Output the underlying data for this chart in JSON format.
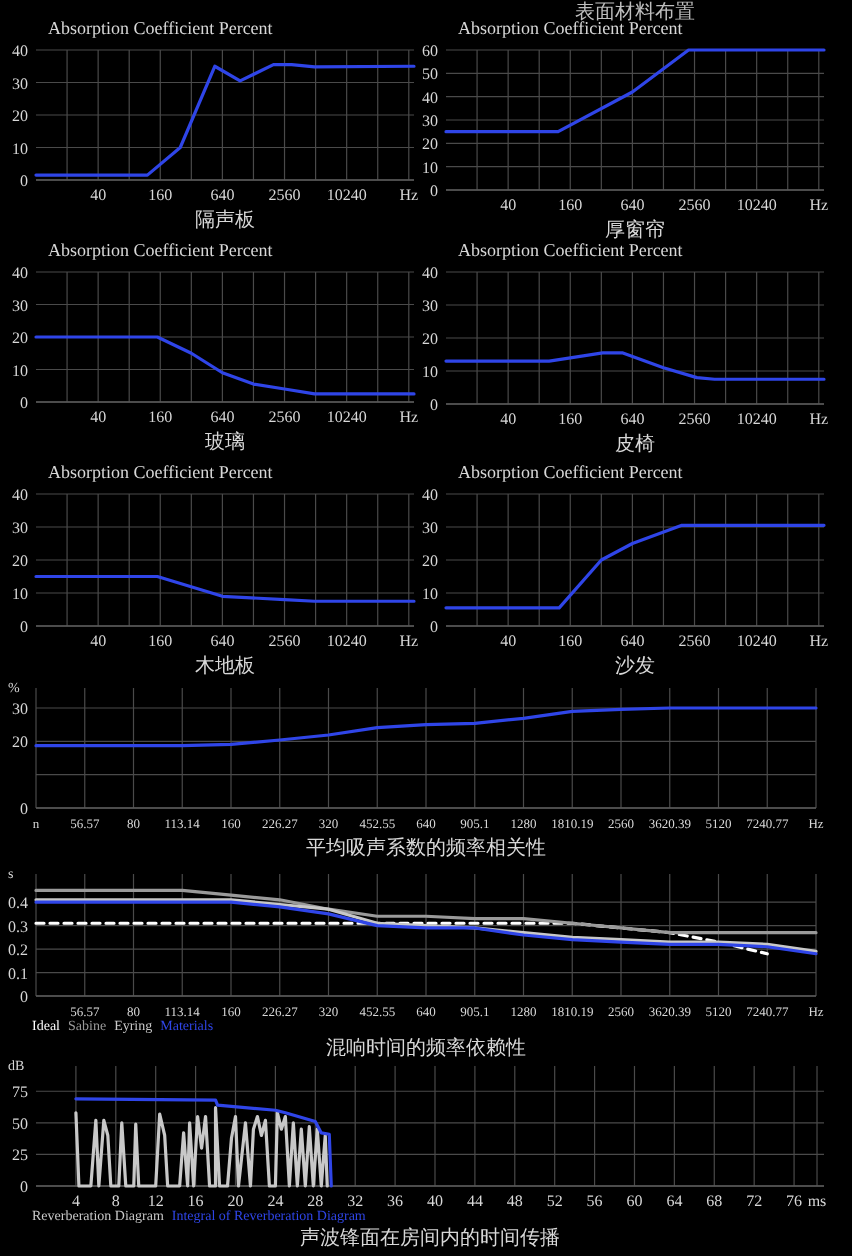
{
  "chart_data": [
    {
      "type": "line",
      "ylabel": "Absorption Coefficient Percent",
      "xlabel": "隔声板",
      "log": "x",
      "xlim": [
        10,
        46000
      ],
      "xticks": [
        {
          "value": 20,
          "label": null
        },
        40,
        {
          "value": 80,
          "label": null
        },
        160,
        {
          "value": 320,
          "label": null
        },
        640,
        {
          "value": 1280,
          "label": null
        },
        2560,
        {
          "value": 5120,
          "label": null
        },
        10240,
        {
          "value": 20480,
          "label": null
        },
        {
          "value": 40960,
          "label": "Hz"
        }
      ],
      "ylim": [
        0,
        40
      ],
      "yticks": [
        0,
        10,
        20,
        30,
        40
      ],
      "grid": true,
      "series": [
        {
          "color": "#2f45e8",
          "x": [
            10,
            120,
            250,
            540,
            950,
            2000,
            3000,
            5000,
            46000
          ],
          "values": [
            1.5,
            1.5,
            10,
            35,
            30.5,
            35.5,
            35.5,
            34.8,
            35
          ]
        }
      ]
    },
    {
      "type": "line",
      "title": "表面材料布置",
      "ylabel": "Absorption Coefficient Percent",
      "xlabel": "厚窗帘",
      "log": "x",
      "xlim": [
        10,
        46000
      ],
      "xticks": [
        {
          "value": 20,
          "label": null
        },
        40,
        {
          "value": 80,
          "label": null
        },
        160,
        {
          "value": 320,
          "label": null
        },
        640,
        {
          "value": 1280,
          "label": null
        },
        2560,
        {
          "value": 5120,
          "label": null
        },
        10240,
        {
          "value": 20480,
          "label": null
        },
        {
          "value": 40960,
          "label": "Hz"
        }
      ],
      "ylim": [
        0,
        60
      ],
      "yticks": [
        0,
        10,
        20,
        30,
        40,
        50,
        60
      ],
      "grid": true,
      "series": [
        {
          "color": "#2f45e8",
          "x": [
            10,
            122,
            640,
            2240,
            46000
          ],
          "values": [
            25,
            25,
            42,
            60,
            60
          ]
        }
      ]
    },
    {
      "type": "line",
      "ylabel": "Absorption Coefficient Percent",
      "xlabel": "玻璃",
      "log": "x",
      "xlim": [
        10,
        46000
      ],
      "xticks": [
        {
          "value": 20,
          "label": null
        },
        40,
        {
          "value": 80,
          "label": null
        },
        160,
        {
          "value": 320,
          "label": null
        },
        640,
        {
          "value": 1280,
          "label": null
        },
        2560,
        {
          "value": 5120,
          "label": null
        },
        10240,
        {
          "value": 20480,
          "label": null
        },
        {
          "value": 40960,
          "label": "Hz"
        }
      ],
      "ylim": [
        0,
        40
      ],
      "yticks": [
        0,
        10,
        20,
        30,
        40
      ],
      "grid": true,
      "series": [
        {
          "color": "#2f45e8",
          "x": [
            10,
            150,
            320,
            640,
            1280,
            2560,
            5000,
            46000
          ],
          "values": [
            20,
            20,
            15,
            9,
            5.5,
            4,
            2.5,
            2.5
          ]
        }
      ]
    },
    {
      "type": "line",
      "ylabel": "Absorption Coefficient Percent",
      "xlabel": "皮椅",
      "log": "x",
      "xlim": [
        10,
        46000
      ],
      "xticks": [
        {
          "value": 20,
          "label": null
        },
        40,
        {
          "value": 80,
          "label": null
        },
        160,
        {
          "value": 320,
          "label": null
        },
        640,
        {
          "value": 1280,
          "label": null
        },
        2560,
        {
          "value": 5120,
          "label": null
        },
        10240,
        {
          "value": 20480,
          "label": null
        },
        {
          "value": 40960,
          "label": "Hz"
        }
      ],
      "ylim": [
        0,
        40
      ],
      "yticks": [
        0,
        10,
        20,
        30,
        40
      ],
      "grid": true,
      "series": [
        {
          "color": "#2f45e8",
          "x": [
            10,
            100,
            330,
            510,
            1280,
            2700,
            4000,
            46000
          ],
          "values": [
            13,
            13,
            15.5,
            15.5,
            11,
            8,
            7.5,
            7.5
          ]
        }
      ]
    },
    {
      "type": "line",
      "ylabel": "Absorption Coefficient Percent",
      "xlabel": "木地板",
      "log": "x",
      "xlim": [
        10,
        46000
      ],
      "xticks": [
        {
          "value": 20,
          "label": null
        },
        40,
        {
          "value": 80,
          "label": null
        },
        160,
        {
          "value": 320,
          "label": null
        },
        640,
        {
          "value": 1280,
          "label": null
        },
        2560,
        {
          "value": 5120,
          "label": null
        },
        10240,
        {
          "value": 20480,
          "label": null
        },
        {
          "value": 40960,
          "label": "Hz"
        }
      ],
      "ylim": [
        0,
        40
      ],
      "yticks": [
        0,
        10,
        20,
        30,
        40
      ],
      "grid": true,
      "series": [
        {
          "color": "#2f45e8",
          "x": [
            10,
            150,
            640,
            2560,
            5000,
            46000
          ],
          "values": [
            15,
            15,
            9,
            8,
            7.5,
            7.5
          ]
        }
      ]
    },
    {
      "type": "line",
      "ylabel": "Absorption Coefficient Percent",
      "xlabel": "沙发",
      "log": "x",
      "xlim": [
        10,
        46000
      ],
      "xticks": [
        {
          "value": 20,
          "label": null
        },
        40,
        {
          "value": 80,
          "label": null
        },
        160,
        {
          "value": 320,
          "label": null
        },
        640,
        {
          "value": 1280,
          "label": null
        },
        2560,
        {
          "value": 5120,
          "label": null
        },
        10240,
        {
          "value": 20480,
          "label": null
        },
        {
          "value": 40960,
          "label": "Hz"
        }
      ],
      "ylim": [
        0,
        40
      ],
      "yticks": [
        0,
        10,
        20,
        30,
        40
      ],
      "grid": true,
      "series": [
        {
          "color": "#2f45e8",
          "x": [
            10,
            125,
            320,
            640,
            1930,
            46000
          ],
          "values": [
            5.5,
            5.5,
            20,
            25,
            30.5,
            30.5
          ]
        }
      ]
    },
    {
      "type": "line",
      "ylabel": "%",
      "xlabel": "平均吸声系数的频率相关性",
      "categories": [
        "n",
        "56.57",
        "80",
        "113.14",
        "160",
        "226.27",
        "320",
        "452.55",
        "640",
        "905.1",
        "1280",
        "1810.19",
        "2560",
        "3620.39",
        "5120",
        "7240.77",
        "Hz"
      ],
      "ylim": [
        0,
        36
      ],
      "yticks": [
        0,
        {
          "value": 10,
          "label": null
        },
        20,
        30
      ],
      "grid": true,
      "series": [
        {
          "color": "#2f45e8",
          "values": [
            18.7,
            18.7,
            18.7,
            18.7,
            19.1,
            20.4,
            21.9,
            24.1,
            25,
            25.4,
            26.9,
            29,
            29.6,
            30,
            30,
            30,
            30
          ]
        }
      ]
    },
    {
      "type": "line",
      "ylabel": "s",
      "xlabel": "混响时间的频率依赖性",
      "categories": [
        null,
        "56.57",
        "80",
        "113.14",
        "160",
        "226.27",
        "320",
        "452.55",
        "640",
        "905.1",
        "1280",
        "1810.19",
        "2560",
        "3620.39",
        "5120",
        "7240.77",
        "Hz"
      ],
      "ylim": [
        0,
        0.52
      ],
      "yticks": [
        0,
        0.1,
        0.2,
        0.3,
        0.4
      ],
      "grid": true,
      "legend": "bottom left",
      "series": [
        {
          "name": "Ideal",
          "color": "#ffffff",
          "line_style": "dashed",
          "values": [
            0.31,
            0.31,
            0.31,
            0.31,
            0.31,
            0.31,
            0.31,
            0.31,
            0.31,
            0.31,
            0.31,
            0.31,
            0.29,
            0.27,
            0.23,
            0.18,
            null
          ]
        },
        {
          "name": "Sabine",
          "color": "#9a9a9a",
          "values": [
            0.45,
            0.45,
            0.45,
            0.45,
            0.43,
            0.41,
            0.37,
            0.34,
            0.34,
            0.33,
            0.33,
            0.31,
            0.29,
            0.27,
            0.27,
            0.27,
            0.27
          ]
        },
        {
          "name": "Eyring",
          "color": "#c8c8c8",
          "values": [
            0.41,
            0.41,
            0.41,
            0.41,
            0.41,
            0.39,
            0.37,
            0.31,
            0.3,
            0.29,
            0.27,
            0.25,
            0.24,
            0.23,
            0.23,
            0.22,
            0.19
          ]
        },
        {
          "name": "Materials",
          "color": "#2f45e8",
          "values": [
            0.4,
            0.4,
            0.4,
            0.4,
            0.4,
            0.38,
            0.35,
            0.3,
            0.29,
            0.29,
            0.26,
            0.24,
            0.23,
            0.22,
            0.22,
            0.21,
            0.18
          ]
        }
      ]
    },
    {
      "type": "line",
      "ylabel": "dB",
      "xlabel": "声波锋面在房间内的时间传播",
      "xlim": [
        0,
        79
      ],
      "xticks": [
        4,
        8,
        12,
        16,
        20,
        24,
        28,
        32,
        36,
        40,
        44,
        48,
        52,
        56,
        60,
        64,
        68,
        72,
        76,
        {
          "value": 78.3,
          "label": "ms"
        }
      ],
      "ylim": [
        0,
        95
      ],
      "yticks": [
        0,
        25,
        50,
        75
      ],
      "grid": true,
      "legend": "bottom left",
      "series": [
        {
          "name": "Reverberation Diagram",
          "color": "#c8c8c8",
          "x": [
            4,
            4.3,
            5.5,
            6,
            6.3,
            6.8,
            7.2,
            7.5,
            8.3,
            8.6,
            9,
            9.8,
            10,
            10.3,
            12,
            12.4,
            12.9,
            13.2,
            14.4,
            14.8,
            15.2,
            15.4,
            15.8,
            16.2,
            16.6,
            17,
            17.4,
            18,
            18,
            18.4,
            19.2,
            19.6,
            20,
            20.3,
            21,
            21.5,
            21.8,
            22.2,
            22.6,
            23,
            23.4,
            24,
            24.2,
            24.6,
            25,
            25.4,
            25.8,
            26.2,
            26.6,
            27,
            27.4,
            27.8,
            28.2,
            28.6,
            29,
            29.2
          ],
          "values": [
            58,
            0,
            0,
            52,
            0,
            52,
            40,
            0,
            0,
            50,
            0,
            0,
            49,
            0,
            0,
            57,
            40,
            0,
            0,
            42,
            0,
            50,
            0,
            55,
            30,
            55,
            0,
            0,
            62,
            0,
            0,
            38,
            55,
            0,
            50,
            0,
            45,
            55,
            40,
            52,
            0,
            0,
            58,
            45,
            55,
            0,
            50,
            0,
            45,
            0,
            47,
            0,
            45,
            0,
            40,
            0
          ]
        },
        {
          "name": "Integral of Reverberation Diagram",
          "color": "#2f45e8",
          "x": [
            4,
            18,
            18.2,
            24,
            25,
            28,
            28.6,
            29.4,
            29.6
          ],
          "values": [
            69,
            68,
            64,
            60,
            58,
            51,
            42,
            41,
            0
          ]
        }
      ]
    }
  ]
}
